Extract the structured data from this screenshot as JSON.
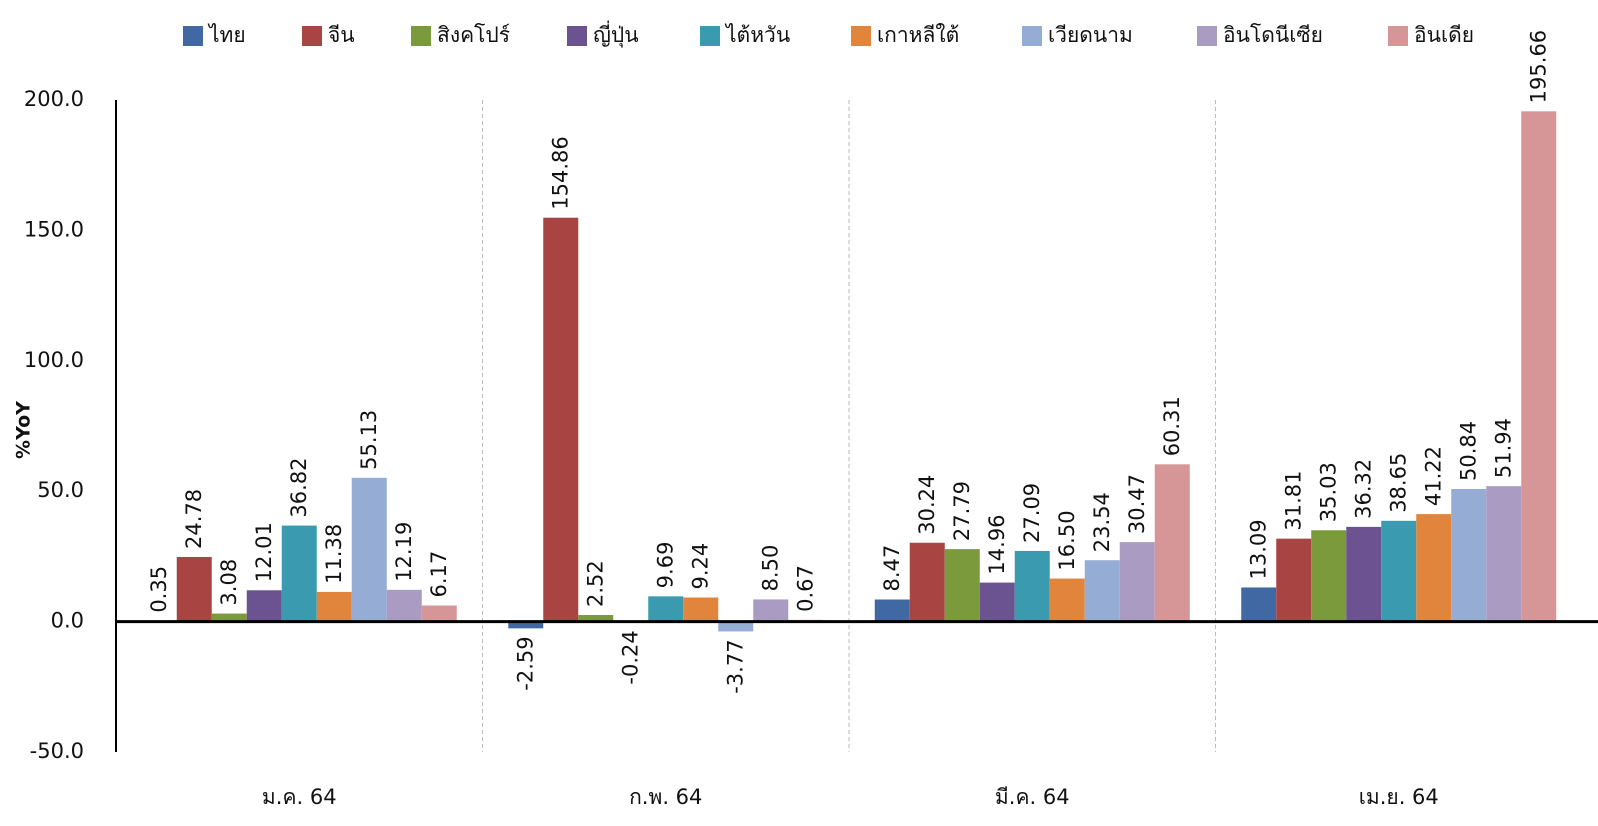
{
  "chart_data": {
    "type": "bar",
    "y_label": "%YoY",
    "categories": [
      "ม.ค. 64",
      "ก.พ. 64",
      "มี.ค. 64",
      "เม.ย. 64"
    ],
    "series": [
      {
        "name": "ไทย",
        "color": "#4069a4",
        "values": [
          0.35,
          -2.59,
          8.47,
          13.09
        ],
        "value_labels": [
          "0.35",
          "-2.59",
          "8.47",
          "13.09"
        ]
      },
      {
        "name": "จีน",
        "color": "#a84442",
        "values": [
          24.78,
          154.86,
          30.24,
          31.81
        ],
        "value_labels": [
          "24.78",
          "154.86",
          "30.24",
          "31.81"
        ]
      },
      {
        "name": "สิงคโปร์",
        "color": "#7a9a3b",
        "values": [
          3.08,
          2.52,
          27.79,
          35.03
        ],
        "value_labels": [
          "3.08",
          "2.52",
          "27.79",
          "35.03"
        ]
      },
      {
        "name": "ญี่ปุ่น",
        "color": "#6b5290",
        "values": [
          12.01,
          -0.24,
          14.96,
          36.32
        ],
        "value_labels": [
          "12.01",
          "-0.24",
          "14.96",
          "36.32"
        ]
      },
      {
        "name": "ไต้หวัน",
        "color": "#3a9bb0",
        "values": [
          36.82,
          9.69,
          27.09,
          38.65
        ],
        "value_labels": [
          "36.82",
          "9.69",
          "27.09",
          "38.65"
        ]
      },
      {
        "name": "เกาหลีใต้",
        "color": "#e0853b",
        "values": [
          11.38,
          9.24,
          16.5,
          41.22
        ],
        "value_labels": [
          "11.38",
          "9.24",
          "16.50",
          "41.22"
        ]
      },
      {
        "name": "เวียดนาม",
        "color": "#95acd4",
        "values": [
          55.13,
          -3.77,
          23.54,
          50.84
        ],
        "value_labels": [
          "55.13",
          "-3.77",
          "23.54",
          "50.84"
        ]
      },
      {
        "name": "อินโดนีเซีย",
        "color": "#a99bc2",
        "values": [
          12.19,
          8.5,
          30.47,
          51.94
        ],
        "value_labels": [
          "12.19",
          "8.50",
          "30.47",
          "51.94"
        ]
      },
      {
        "name": "อินเดีย",
        "color": "#d69596",
        "values": [
          6.17,
          0.67,
          60.31,
          195.66
        ],
        "value_labels": [
          "6.17",
          "0.67",
          "60.31",
          "195.66"
        ]
      }
    ],
    "ylim": [
      -50,
      200
    ],
    "yticks": [
      {
        "value": -50,
        "label": "-50.0"
      },
      {
        "value": 0,
        "label": "0.0"
      },
      {
        "value": 50,
        "label": "50.0"
      },
      {
        "value": 100,
        "label": "100.0"
      },
      {
        "value": 150,
        "label": "150.0"
      },
      {
        "value": 200,
        "label": "200.0"
      }
    ],
    "grid": false,
    "legend": "top"
  }
}
